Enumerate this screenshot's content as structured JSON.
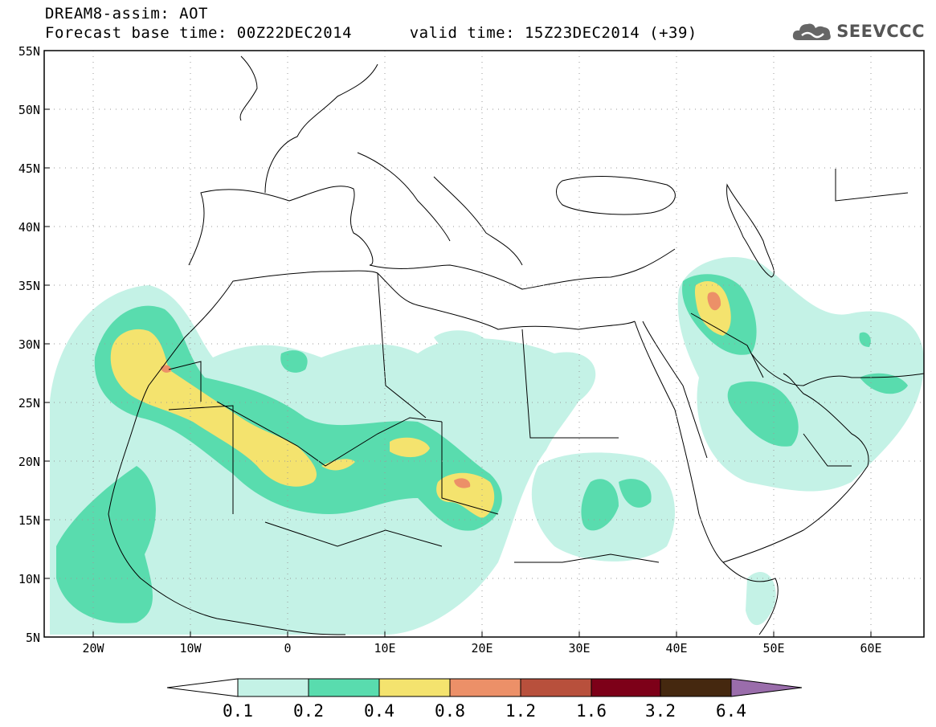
{
  "header": {
    "title": "DREAM8-assim: AOT",
    "base_label": "Forecast base time: 00Z22DEC2014",
    "valid_label": "valid time: 15Z23DEC2014 (+39)"
  },
  "logo": {
    "text": "SEEVCCC",
    "icon": "cloud-icon"
  },
  "map": {
    "lat_labels": [
      "55N",
      "50N",
      "45N",
      "40N",
      "35N",
      "30N",
      "25N",
      "20N",
      "15N",
      "10N",
      "5N"
    ],
    "lon_labels": [
      "20W",
      "10W",
      "0",
      "10E",
      "20E",
      "30E",
      "40E",
      "50E",
      "60E"
    ],
    "lat_range": [
      5,
      55
    ],
    "lon_range": [
      -25,
      65
    ],
    "grid": "dotted"
  },
  "legend": {
    "bins": [
      "0.1",
      "0.2",
      "0.4",
      "0.8",
      "1.2",
      "1.6",
      "3.2",
      "6.4"
    ],
    "colors": [
      "#ffffff",
      "#c4f2e6",
      "#59dcae",
      "#f4e36e",
      "#ec9068",
      "#b8503c",
      "#7d0018",
      "#45280f",
      "#9a6dab"
    ]
  }
}
